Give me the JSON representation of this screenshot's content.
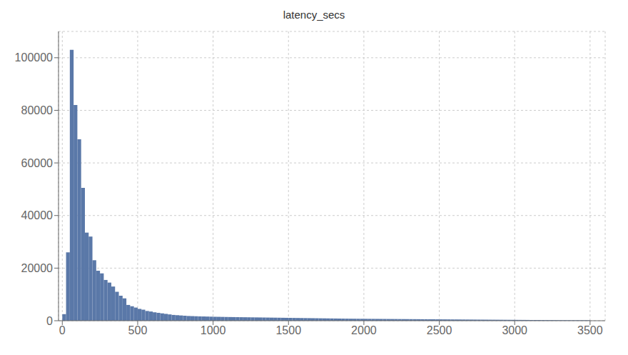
{
  "chart_data": {
    "type": "histogram",
    "title": "latency_secs",
    "bins": [
      0,
      25,
      50,
      75,
      100,
      125,
      150,
      175,
      200,
      225,
      250,
      275,
      300,
      325,
      350,
      375,
      400,
      425,
      450,
      475,
      500,
      525,
      550,
      575,
      600,
      625,
      650,
      675,
      700,
      725,
      750,
      775,
      800,
      825,
      850,
      875,
      900,
      925,
      950,
      975,
      1000,
      1025,
      1050,
      1075,
      1100,
      1125,
      1150,
      1175,
      1200,
      1225,
      1250,
      1275,
      1300,
      1325,
      1350,
      1375,
      1400,
      1425,
      1450,
      1475,
      1500,
      1525,
      1550,
      1575,
      1600,
      1625,
      1650,
      1675,
      1700,
      1725,
      1750,
      1775,
      1800,
      1825,
      1850,
      1875,
      1900,
      1925,
      1950,
      1975,
      2000,
      2025,
      2050,
      2075,
      2100,
      2125,
      2150,
      2175,
      2200,
      2225,
      2250,
      2275,
      2300,
      2325,
      2350,
      2375,
      2400,
      2425,
      2450,
      2475,
      2500,
      2525,
      2550,
      2575,
      2600,
      2625,
      2650,
      2675,
      2700,
      2725,
      2750,
      2775,
      2800,
      2825,
      2850,
      2875,
      2900,
      2925,
      2950,
      2975,
      3000,
      3025,
      3050,
      3075,
      3100,
      3125,
      3150,
      3175,
      3200,
      3225,
      3250,
      3275,
      3300,
      3325,
      3350,
      3375,
      3400,
      3425,
      3450,
      3475,
      3500
    ],
    "values": [
      2500,
      26000,
      103000,
      82000,
      69000,
      50500,
      33500,
      32000,
      23000,
      19000,
      18000,
      15500,
      14500,
      13000,
      11000,
      9500,
      8500,
      6000,
      5500,
      5000,
      4500,
      4200,
      3700,
      3500,
      3200,
      3000,
      2800,
      2600,
      2400,
      2200,
      2100,
      2000,
      1900,
      1800,
      1750,
      1700,
      1650,
      1620,
      1580,
      1540,
      1500,
      1480,
      1450,
      1420,
      1400,
      1380,
      1360,
      1340,
      1320,
      1300,
      1280,
      1260,
      1240,
      1220,
      1200,
      1180,
      1160,
      1140,
      1120,
      1100,
      1080,
      1060,
      1040,
      1020,
      1000,
      980,
      960,
      940,
      920,
      900,
      880,
      860,
      840,
      820,
      800,
      780,
      760,
      750,
      740,
      730,
      720,
      710,
      700,
      690,
      680,
      670,
      660,
      650,
      640,
      630,
      620,
      610,
      600,
      590,
      580,
      570,
      560,
      550,
      540,
      530,
      520,
      510,
      500,
      490,
      480,
      470,
      460,
      450,
      440,
      430,
      420,
      410,
      400,
      390,
      380,
      370,
      360,
      350,
      340,
      330,
      320,
      310,
      300,
      290,
      280,
      270,
      260,
      250,
      240,
      230,
      220,
      210,
      200,
      195,
      190,
      185,
      180,
      175,
      170,
      165
    ],
    "color": "#5a78a8",
    "xlim": [
      -25,
      3600
    ],
    "ylim": [
      0,
      110000
    ],
    "xticks": [
      0,
      500,
      1000,
      1500,
      2000,
      2500,
      3000,
      3500
    ],
    "yticks": [
      0,
      20000,
      40000,
      60000,
      80000,
      100000
    ],
    "grid": true
  }
}
